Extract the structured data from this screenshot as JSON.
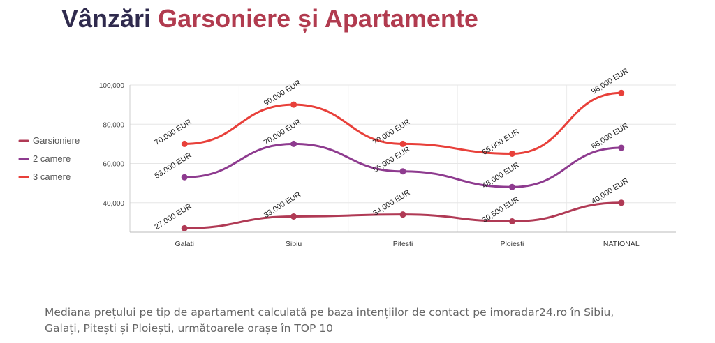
{
  "header": {
    "title_part1": "Vânzări",
    "title_part2": "Garsoniere și Apartamente"
  },
  "chart_data": {
    "type": "line",
    "categories": [
      "Galati",
      "Sibiu",
      "Pitesti",
      "Ploiesti",
      "NATIONAL"
    ],
    "series": [
      {
        "name": "Garsioniere",
        "color": "#b03a55",
        "values": [
          27000,
          33000,
          34000,
          30500,
          40000
        ],
        "labels": [
          "27,000 EUR",
          "33,000 EUR",
          "34,000 EUR",
          "30,500 EUR",
          "40,000 EUR"
        ]
      },
      {
        "name": "2 camere",
        "color": "#8e3b8f",
        "values": [
          53000,
          70000,
          56000,
          48000,
          68000
        ],
        "labels": [
          "53,000 EUR",
          "70,000 EUR",
          "56,000 EUR",
          "48,000 EUR",
          "68,000 EUR"
        ]
      },
      {
        "name": "3 camere",
        "color": "#e8403a",
        "values": [
          70000,
          90000,
          70000,
          65000,
          96000
        ],
        "labels": [
          "70,000 EUR",
          "90,000 EUR",
          "70,000 EUR",
          "65,000 EUR",
          "96,000 EUR"
        ]
      }
    ],
    "y_ticks": [
      40000,
      60000,
      80000,
      100000
    ],
    "y_tick_labels": [
      "40,000",
      "60,000",
      "80,000",
      "100,000"
    ],
    "ylim": [
      25000,
      100000
    ],
    "grid": true,
    "legend_position": "left",
    "title": "",
    "xlabel": "",
    "ylabel": ""
  },
  "caption": {
    "text": "Mediana prețului pe tip de apartament calculată pe baza intențiilor de contact pe imoradar24.ro în Sibiu, Galați, Pitești și Ploiești, următoarele orașe în TOP 10"
  }
}
